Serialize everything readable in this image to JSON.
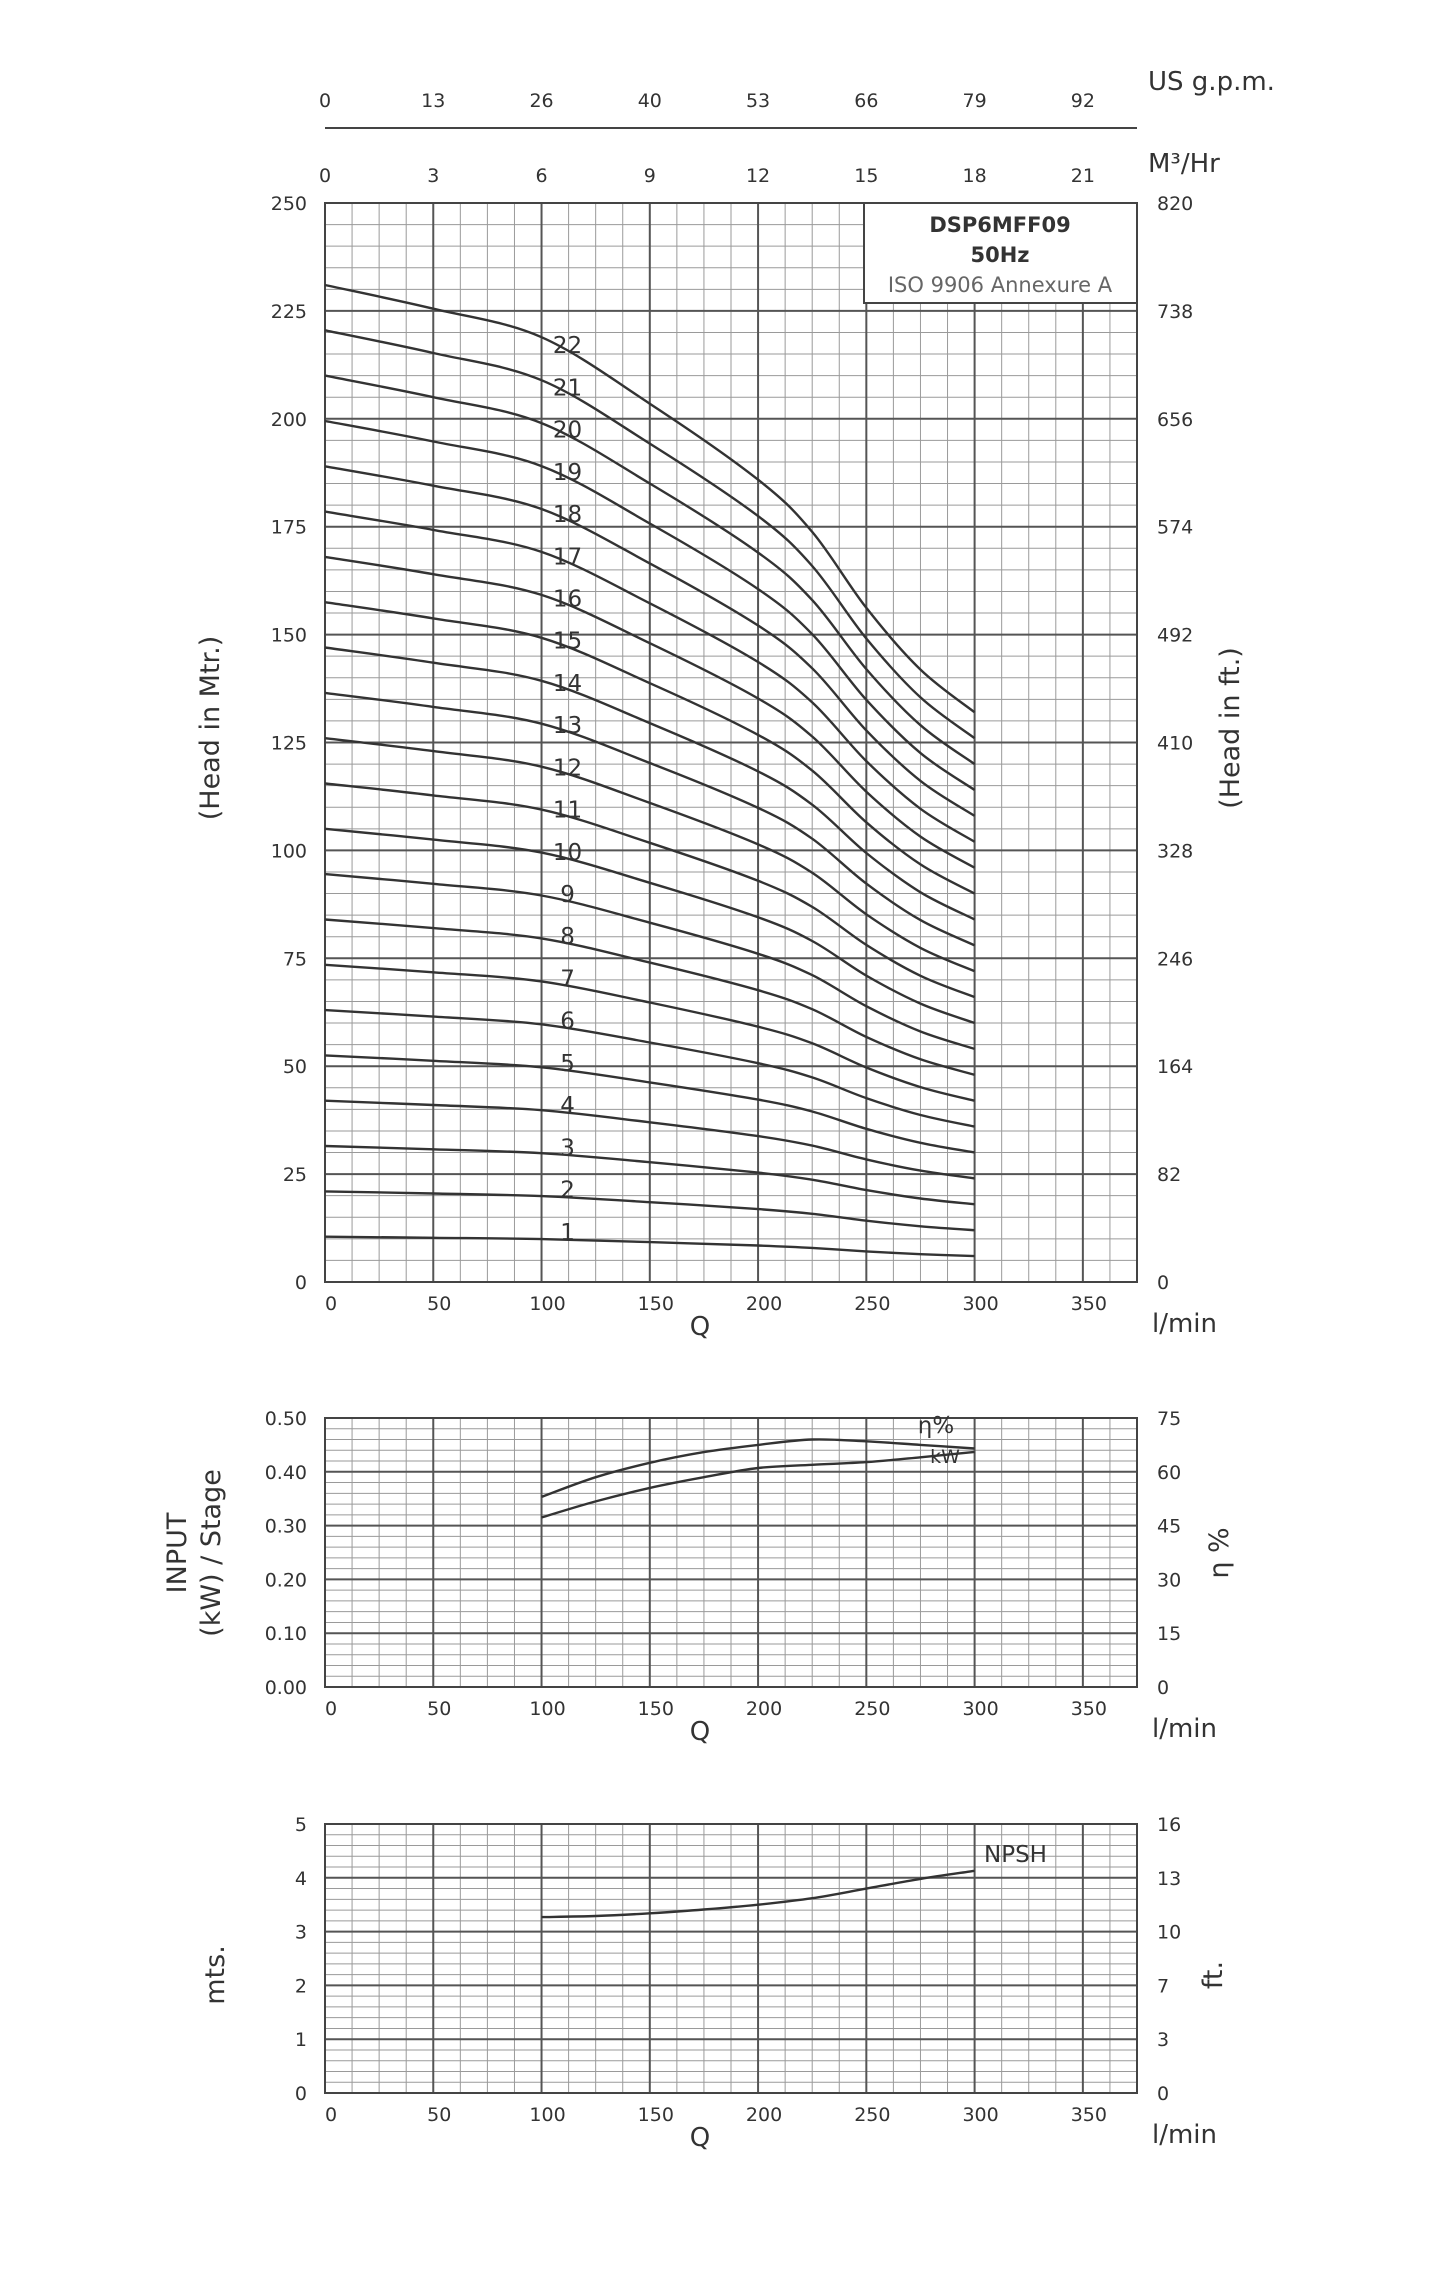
{
  "chart_data": [
    {
      "type": "line",
      "title_lines": [
        "DSP6MFF09",
        "50Hz"
      ],
      "subtitle": "ISO 9906 Annexure A",
      "xlabel": "Q",
      "x_unit": "l/min",
      "ylabel": "(Head in Mtr.)",
      "ylabel_right": "(Head in ft.)",
      "xlim": [
        0,
        375
      ],
      "ylim": [
        0,
        250
      ],
      "x_ticks": [
        "0",
        "50",
        "100",
        "150",
        "200",
        "250",
        "300",
        "350"
      ],
      "y_ticks": [
        "0",
        "25",
        "50",
        "75",
        "100",
        "125",
        "150",
        "175",
        "200",
        "225",
        "250"
      ],
      "y_ticks_right": [
        "0",
        "82",
        "164",
        "246",
        "328",
        "410",
        "492",
        "574",
        "656",
        "738",
        "820"
      ],
      "top_axes": [
        {
          "unit": "US g.p.m.",
          "ticks": [
            "0",
            "13",
            "26",
            "40",
            "53",
            "66",
            "79",
            "92"
          ]
        },
        {
          "unit": "M³/Hr",
          "ticks": [
            "0",
            "3",
            "6",
            "9",
            "12",
            "15",
            "18",
            "21"
          ]
        }
      ],
      "grid": true,
      "x": [
        0,
        50,
        100,
        150,
        200,
        225,
        250,
        275,
        300
      ],
      "base_head_per_stage": [
        10.5,
        10.25,
        9.95,
        9.25,
        8.45,
        7.9,
        7.1,
        6.45,
        6.0
      ],
      "series": [
        {
          "name": "1",
          "stages": 1
        },
        {
          "name": "2",
          "stages": 2
        },
        {
          "name": "3",
          "stages": 3
        },
        {
          "name": "4",
          "stages": 4
        },
        {
          "name": "5",
          "stages": 5
        },
        {
          "name": "6",
          "stages": 6
        },
        {
          "name": "7",
          "stages": 7
        },
        {
          "name": "8",
          "stages": 8
        },
        {
          "name": "9",
          "stages": 9
        },
        {
          "name": "10",
          "stages": 10
        },
        {
          "name": "11",
          "stages": 11
        },
        {
          "name": "12",
          "stages": 12
        },
        {
          "name": "13",
          "stages": 13
        },
        {
          "name": "14",
          "stages": 14
        },
        {
          "name": "15",
          "stages": 15
        },
        {
          "name": "16",
          "stages": 16
        },
        {
          "name": "17",
          "stages": 17
        },
        {
          "name": "18",
          "stages": 18
        },
        {
          "name": "19",
          "stages": 19
        },
        {
          "name": "20",
          "stages": 20
        },
        {
          "name": "21",
          "stages": 21
        },
        {
          "name": "22",
          "stages": 22
        }
      ]
    },
    {
      "type": "line",
      "xlabel": "Q",
      "x_unit": "l/min",
      "ylabel_lines": [
        "INPUT",
        "(kW) / Stage"
      ],
      "ylabel_right": "η %",
      "xlim": [
        0,
        375
      ],
      "ylim": [
        0,
        0.5
      ],
      "ylim_right": [
        0,
        75
      ],
      "x_ticks": [
        "0",
        "50",
        "100",
        "150",
        "200",
        "250",
        "300",
        "350"
      ],
      "y_ticks": [
        "0.00",
        "0.10",
        "0.20",
        "0.30",
        "0.40",
        "0.50"
      ],
      "y_ticks_right": [
        "0",
        "15",
        "30",
        "45",
        "60",
        "75"
      ],
      "grid": true,
      "series": [
        {
          "name": "η%",
          "axis": "right",
          "x": [
            100,
            125,
            150,
            175,
            200,
            225,
            250,
            275,
            300
          ],
          "values": [
            53,
            58.5,
            62.5,
            65.5,
            67.5,
            69,
            68.5,
            67.5,
            66.5
          ]
        },
        {
          "name": "kW",
          "axis": "left",
          "x": [
            100,
            125,
            150,
            175,
            200,
            225,
            250,
            275,
            300
          ],
          "values": [
            0.315,
            0.345,
            0.37,
            0.39,
            0.407,
            0.413,
            0.418,
            0.427,
            0.437
          ]
        }
      ]
    },
    {
      "type": "line",
      "xlabel": "Q",
      "x_unit": "l/min",
      "ylabel": "mts.",
      "ylabel_right": "ft.",
      "xlim": [
        0,
        375
      ],
      "ylim": [
        0,
        5
      ],
      "x_ticks": [
        "0",
        "50",
        "100",
        "150",
        "200",
        "250",
        "300",
        "350"
      ],
      "y_ticks": [
        "0",
        "1",
        "2",
        "3",
        "4",
        "5"
      ],
      "y_ticks_right": [
        "0",
        "3",
        "7",
        "10",
        "13",
        "16"
      ],
      "grid": true,
      "series": [
        {
          "name": "NPSH",
          "x": [
            100,
            125,
            150,
            175,
            200,
            225,
            250,
            275,
            300
          ],
          "values": [
            3.27,
            3.29,
            3.34,
            3.41,
            3.5,
            3.62,
            3.8,
            3.98,
            4.13
          ]
        }
      ]
    }
  ]
}
